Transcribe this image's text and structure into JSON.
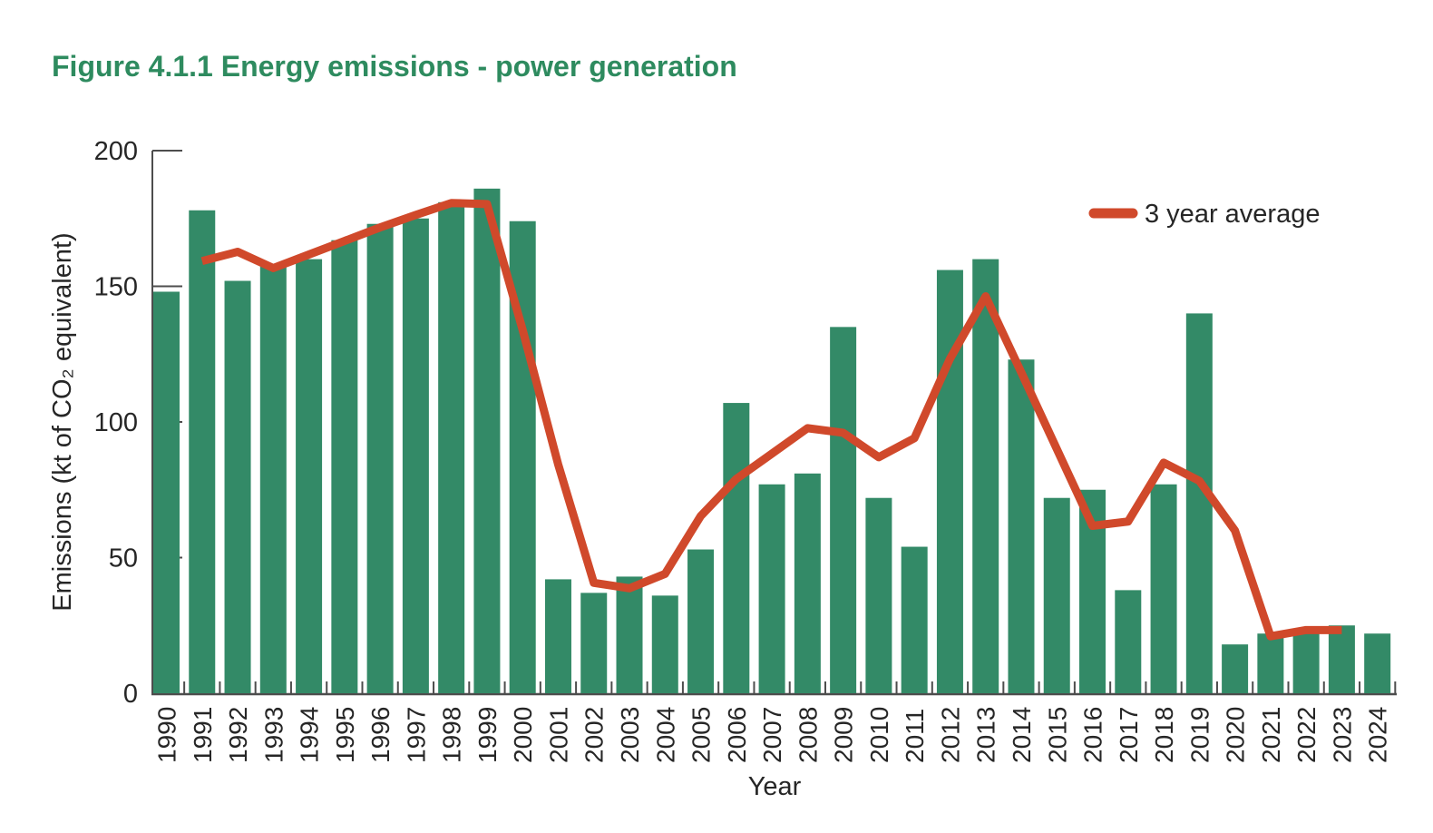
{
  "header": {
    "title": "Figure 4.1.1 Energy emissions - power generation"
  },
  "legend": {
    "label": "3 year average",
    "position": "upper right"
  },
  "colors": {
    "background": "#ffffff",
    "title_green": "#2e8b5f",
    "bar_green": "#338a67",
    "line_red": "#d0492b",
    "axis_gray": "#4d4d4d",
    "text_dark": "#262626"
  },
  "chart_data": {
    "type": "bar",
    "title": "Figure 4.1.1 Energy emissions - power generation",
    "xlabel": "Year",
    "ylabel": "Emissions (kt of CO₂ equivalent)",
    "ylim": [
      0,
      200
    ],
    "yticks": [
      0,
      50,
      100,
      150,
      200
    ],
    "grid": false,
    "legend_position": "upper right",
    "categories": [
      "1990",
      "1991",
      "1992",
      "1993",
      "1994",
      "1995",
      "1996",
      "1997",
      "1998",
      "1999",
      "2000",
      "2001",
      "2002",
      "2003",
      "2004",
      "2005",
      "2006",
      "2007",
      "2008",
      "2009",
      "2010",
      "2011",
      "2012",
      "2013",
      "2014",
      "2015",
      "2016",
      "2017",
      "2018",
      "2019",
      "2020",
      "2021",
      "2022",
      "2023",
      "2024"
    ],
    "series": [
      {
        "name": "Emissions",
        "type": "bar",
        "color": "#338a67",
        "values": [
          148,
          178,
          152,
          158,
          160,
          167,
          173,
          175,
          181,
          186,
          174,
          42,
          37,
          43,
          36,
          53,
          107,
          77,
          81,
          135,
          72,
          54,
          156,
          160,
          123,
          72,
          75,
          38,
          77,
          140,
          18,
          22,
          23,
          25,
          22
        ]
      },
      {
        "name": "3 year average",
        "type": "line",
        "color": "#d0492b",
        "x": [
          "1991",
          "1992",
          "1993",
          "1994",
          "1995",
          "1996",
          "1997",
          "1998",
          "1999",
          "2000",
          "2001",
          "2002",
          "2003",
          "2004",
          "2005",
          "2006",
          "2007",
          "2008",
          "2009",
          "2010",
          "2011",
          "2012",
          "2013",
          "2014",
          "2015",
          "2016",
          "2017",
          "2018",
          "2019",
          "2020",
          "2021",
          "2022",
          "2023"
        ],
        "values": [
          159.3,
          162.7,
          156.7,
          161.7,
          166.7,
          171.7,
          176.3,
          180.7,
          180.3,
          134.0,
          84.3,
          40.7,
          38.7,
          44.0,
          65.3,
          79.0,
          88.3,
          97.7,
          96.0,
          87.0,
          94.0,
          123.3,
          146.3,
          118.3,
          90.0,
          61.7,
          63.3,
          85.0,
          78.3,
          60.0,
          21.0,
          23.3,
          23.3
        ]
      }
    ]
  }
}
